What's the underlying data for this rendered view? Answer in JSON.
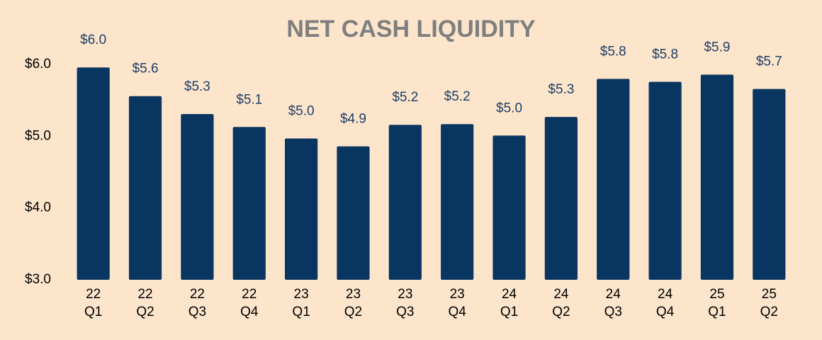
{
  "chart_data": {
    "type": "bar",
    "title": "NET CASH LIQUIDITY",
    "categories": [
      [
        "22",
        "Q1"
      ],
      [
        "22",
        "Q2"
      ],
      [
        "22",
        "Q3"
      ],
      [
        "22",
        "Q4"
      ],
      [
        "23",
        "Q1"
      ],
      [
        "23",
        "Q2"
      ],
      [
        "23",
        "Q3"
      ],
      [
        "23",
        "Q4"
      ],
      [
        "24",
        "Q1"
      ],
      [
        "24",
        "Q2"
      ],
      [
        "24",
        "Q3"
      ],
      [
        "24",
        "Q4"
      ],
      [
        "25",
        "Q1"
      ],
      [
        "25",
        "Q2"
      ]
    ],
    "values": [
      5.96,
      5.56,
      5.31,
      5.13,
      4.97,
      4.86,
      5.16,
      5.17,
      5.01,
      5.27,
      5.8,
      5.76,
      5.86,
      5.66
    ],
    "value_labels": [
      "$6.0",
      "$5.6",
      "$5.3",
      "$5.1",
      "$5.0",
      "$4.9",
      "$5.2",
      "$5.2",
      "$5.0",
      "$5.3",
      "$5.8",
      "$5.8",
      "$5.9",
      "$5.7"
    ],
    "color": "#093660",
    "ylim": [
      3,
      6.9
    ],
    "yticks": [
      {
        "value": 3,
        "label": "$3.0"
      },
      {
        "value": 4,
        "label": "$4.0"
      },
      {
        "value": 5,
        "label": "$5.0"
      },
      {
        "value": 6,
        "label": "$6.0"
      }
    ],
    "grid": false
  }
}
